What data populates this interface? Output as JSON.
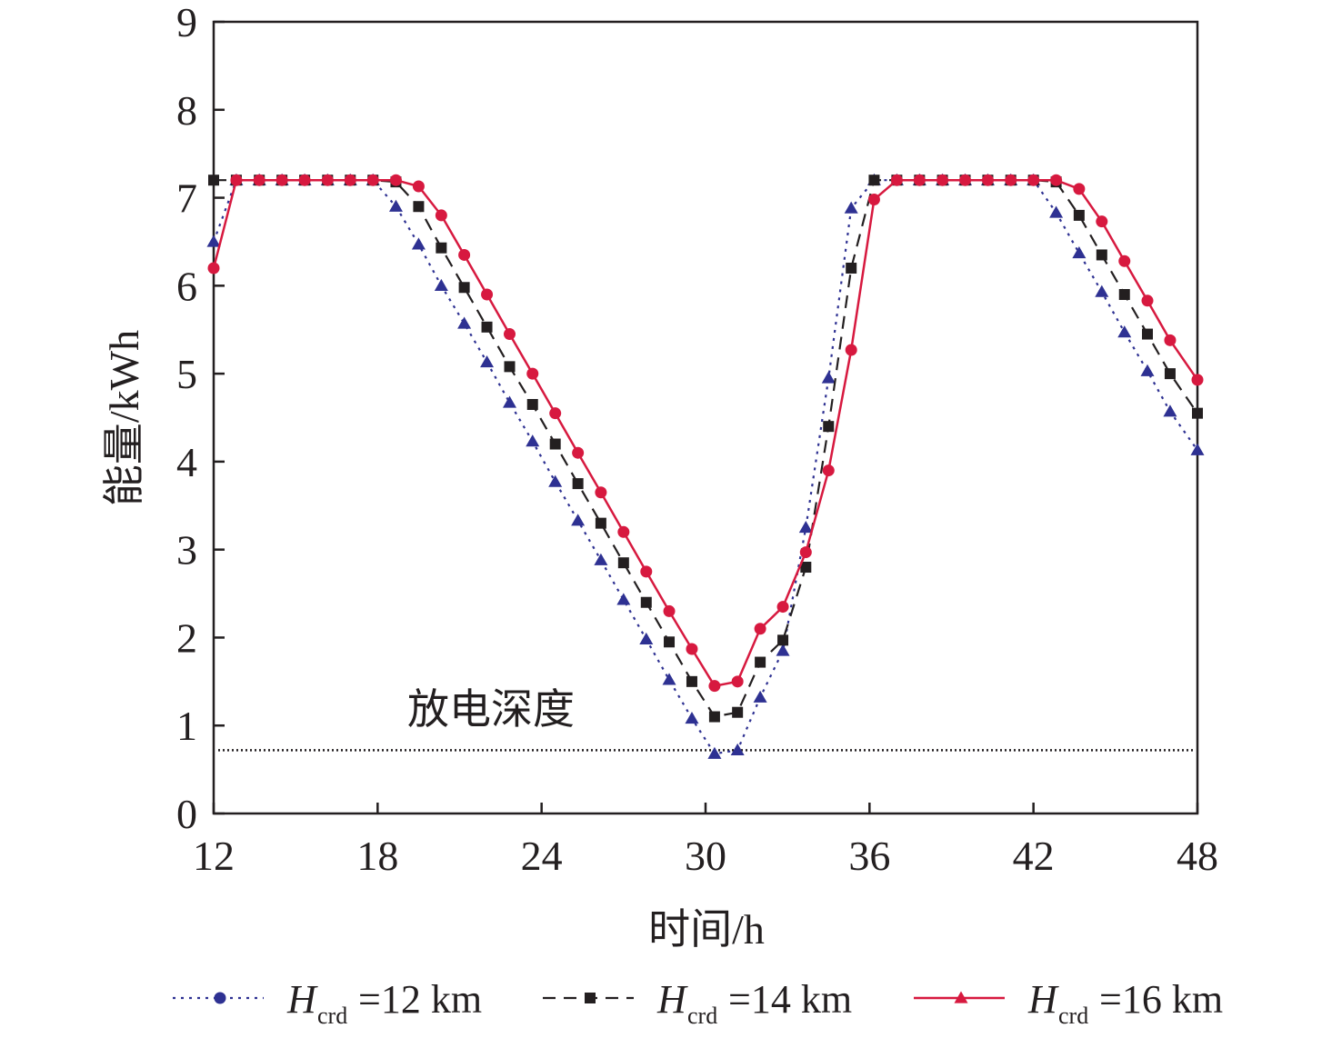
{
  "chart_data": {
    "type": "line",
    "xlabel": "时间/h",
    "ylabel": "能量/kWh",
    "xlim": [
      12,
      48
    ],
    "ylim": [
      0,
      9
    ],
    "xticks": [
      "12",
      "18",
      "24",
      "30",
      "36",
      "42",
      "48"
    ],
    "yticks": [
      "0",
      "1",
      "2",
      "3",
      "4",
      "5",
      "6",
      "7",
      "8",
      "9"
    ],
    "grid": false,
    "legend_position": "bottom",
    "annotation": {
      "text": "放电深度",
      "reference_value": 0.72
    },
    "series": [
      {
        "name": "H_crd=12 km",
        "legend": {
          "italic": "H",
          "sub": "crd",
          "rest": "=12 km"
        },
        "line_style": "dotted",
        "marker": "triangle",
        "color": "#2e3192",
        "x": [
          12,
          12.83,
          13.67,
          14.5,
          15.33,
          16.17,
          17,
          17.83,
          18.67,
          19.5,
          20.33,
          21.17,
          22,
          22.83,
          23.67,
          24.5,
          25.33,
          26.17,
          27,
          27.83,
          28.67,
          29.5,
          30.33,
          31.17,
          32,
          32.83,
          33.67,
          34.5,
          35.33,
          36.17,
          37,
          37.83,
          38.67,
          39.5,
          40.33,
          41.17,
          42,
          42.83,
          43.67,
          44.5,
          45.33,
          46.17,
          47,
          48
        ],
        "values": [
          6.5,
          7.2,
          7.2,
          7.2,
          7.2,
          7.2,
          7.2,
          7.2,
          6.9,
          6.47,
          6.0,
          5.57,
          5.13,
          4.67,
          4.23,
          3.77,
          3.33,
          2.88,
          2.43,
          1.98,
          1.52,
          1.08,
          0.68,
          0.72,
          1.32,
          1.85,
          3.25,
          4.95,
          6.88,
          7.2,
          7.2,
          7.2,
          7.2,
          7.2,
          7.2,
          7.2,
          7.2,
          6.83,
          6.37,
          5.93,
          5.47,
          5.03,
          4.57,
          4.13
        ]
      },
      {
        "name": "H_crd=14 km",
        "legend": {
          "italic": "H",
          "sub": "crd",
          "rest": "=14 km"
        },
        "line_style": "dashed",
        "marker": "square",
        "color": "#231f20",
        "x": [
          12,
          12.83,
          13.67,
          14.5,
          15.33,
          16.17,
          17,
          17.83,
          18.67,
          19.5,
          20.33,
          21.17,
          22,
          22.83,
          23.67,
          24.5,
          25.33,
          26.17,
          27,
          27.83,
          28.67,
          29.5,
          30.33,
          31.17,
          32,
          32.83,
          33.67,
          34.5,
          35.33,
          36.17,
          37,
          37.83,
          38.67,
          39.5,
          40.33,
          41.17,
          42,
          42.83,
          43.67,
          44.5,
          45.33,
          46.17,
          47,
          48
        ],
        "values": [
          7.2,
          7.2,
          7.2,
          7.2,
          7.2,
          7.2,
          7.2,
          7.2,
          7.18,
          6.9,
          6.43,
          5.98,
          5.53,
          5.08,
          4.65,
          4.2,
          3.75,
          3.3,
          2.85,
          2.4,
          1.95,
          1.5,
          1.1,
          1.15,
          1.72,
          1.97,
          2.8,
          4.4,
          6.2,
          7.2,
          7.2,
          7.2,
          7.2,
          7.2,
          7.2,
          7.2,
          7.2,
          7.18,
          6.8,
          6.35,
          5.9,
          5.45,
          5.0,
          4.55
        ]
      },
      {
        "name": "H_crd=16 km",
        "legend": {
          "italic": "H",
          "sub": "crd",
          "rest": "=16 km"
        },
        "line_style": "solid",
        "marker": "circle",
        "color": "#d7193f",
        "x": [
          12,
          12.83,
          13.67,
          14.5,
          15.33,
          16.17,
          17,
          17.83,
          18.67,
          19.5,
          20.33,
          21.17,
          22,
          22.83,
          23.67,
          24.5,
          25.33,
          26.17,
          27,
          27.83,
          28.67,
          29.5,
          30.33,
          31.17,
          32,
          32.83,
          33.67,
          34.5,
          35.33,
          36.17,
          37,
          37.83,
          38.67,
          39.5,
          40.33,
          41.17,
          42,
          42.83,
          43.67,
          44.5,
          45.33,
          46.17,
          47,
          48
        ],
        "values": [
          6.2,
          7.2,
          7.2,
          7.2,
          7.2,
          7.2,
          7.2,
          7.2,
          7.2,
          7.13,
          6.8,
          6.35,
          5.9,
          5.45,
          5.0,
          4.55,
          4.1,
          3.65,
          3.2,
          2.75,
          2.3,
          1.87,
          1.45,
          1.5,
          2.1,
          2.35,
          2.97,
          3.9,
          5.27,
          6.98,
          7.2,
          7.2,
          7.2,
          7.2,
          7.2,
          7.2,
          7.2,
          7.2,
          7.1,
          6.73,
          6.28,
          5.83,
          5.38,
          4.93
        ]
      }
    ]
  }
}
